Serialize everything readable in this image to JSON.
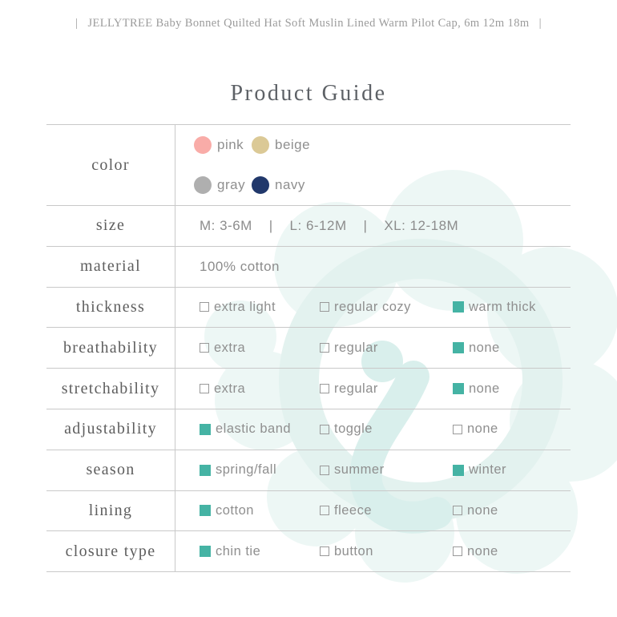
{
  "header": {
    "text": "|   JELLYTREE Baby Bonnet Quilted Hat Soft Muslin Lined Warm Pilot Cap, 6m 12m 18m   |"
  },
  "title": "Product Guide",
  "colors": {
    "accent_teal": "#45B3A4",
    "divider_gray": "#C9C9C9",
    "label_text_gray": "#5E5E5E",
    "option_text_gray": "#8F8F8F",
    "watermark_fill": "#EDF7F5",
    "watermark_stroke": "#E3F2EF",
    "watermark_swoosh": "#D9EFEC"
  },
  "watermark_icon": "jellytree-cloud-logo-watermark",
  "table": {
    "color_row": {
      "label": "color",
      "swatches": [
        {
          "name": "pink",
          "hex": "#F9ACA8"
        },
        {
          "name": "beige",
          "hex": "#DBC996"
        },
        {
          "name": "gray",
          "hex": "#AFAFAF"
        },
        {
          "name": "navy",
          "hex": "#21386B"
        }
      ]
    },
    "size_row": {
      "label": "size",
      "value": "M: 3-6M    |    L: 6-12M    |    XL: 12-18M"
    },
    "material_row": {
      "label": "material",
      "value": "100% cotton"
    },
    "option_rows": [
      {
        "label": "thickness",
        "options": [
          {
            "text": "extra light",
            "checked": false
          },
          {
            "text": "regular cozy",
            "checked": false
          },
          {
            "text": "warm thick",
            "checked": true
          }
        ]
      },
      {
        "label": "breathability",
        "options": [
          {
            "text": "extra",
            "checked": false
          },
          {
            "text": "regular",
            "checked": false
          },
          {
            "text": "none",
            "checked": true
          }
        ]
      },
      {
        "label": "stretchability",
        "options": [
          {
            "text": "extra",
            "checked": false
          },
          {
            "text": "regular",
            "checked": false
          },
          {
            "text": "none",
            "checked": true
          }
        ]
      },
      {
        "label": "adjustability",
        "options": [
          {
            "text": "elastic band",
            "checked": true
          },
          {
            "text": "toggle",
            "checked": false
          },
          {
            "text": "none",
            "checked": false
          }
        ]
      },
      {
        "label": "season",
        "options": [
          {
            "text": "spring/fall",
            "checked": true
          },
          {
            "text": "summer",
            "checked": false
          },
          {
            "text": "winter",
            "checked": true
          }
        ]
      },
      {
        "label": "lining",
        "options": [
          {
            "text": "cotton",
            "checked": true
          },
          {
            "text": "fleece",
            "checked": false
          },
          {
            "text": "none",
            "checked": false
          }
        ]
      },
      {
        "label": "closure type",
        "options": [
          {
            "text": "chin tie",
            "checked": true
          },
          {
            "text": "button",
            "checked": false
          },
          {
            "text": "none",
            "checked": false
          }
        ]
      }
    ]
  }
}
